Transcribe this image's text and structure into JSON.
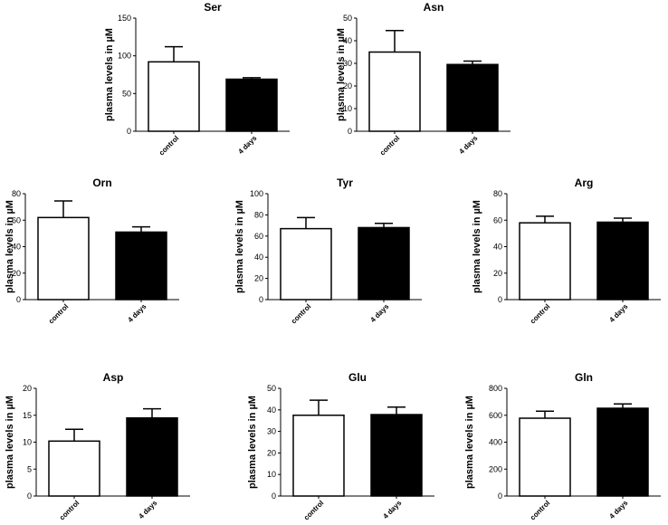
{
  "colors": {
    "control": "#ffffff",
    "treated": "#000000",
    "stroke": "#000000"
  },
  "chart_data": [
    {
      "type": "bar",
      "title": "Ser",
      "ylabel": "plasma levels in  µM",
      "categories": [
        "control",
        "4 days"
      ],
      "values": [
        92,
        69
      ],
      "errors": [
        20,
        2
      ],
      "ylim": [
        0,
        150
      ],
      "yticks": [
        0,
        50,
        100,
        150
      ],
      "grid": false
    },
    {
      "type": "bar",
      "title": "Asn",
      "ylabel": "plasma levels in  µM",
      "categories": [
        "control",
        "4 days"
      ],
      "values": [
        35,
        29.5
      ],
      "errors": [
        9.5,
        1.5
      ],
      "ylim": [
        0,
        50
      ],
      "yticks": [
        0,
        10,
        20,
        30,
        40,
        50
      ],
      "grid": false
    },
    {
      "type": "bar",
      "title": "Orn",
      "ylabel": "plasma levels in  µM",
      "categories": [
        "control",
        "4 days"
      ],
      "values": [
        62,
        51
      ],
      "errors": [
        12.5,
        4
      ],
      "ylim": [
        0,
        80
      ],
      "yticks": [
        0,
        20,
        40,
        60,
        80
      ],
      "grid": false
    },
    {
      "type": "bar",
      "title": "Tyr",
      "ylabel": "plasma levels in  µM",
      "categories": [
        "control",
        "4 days"
      ],
      "values": [
        67,
        68
      ],
      "errors": [
        10.5,
        4
      ],
      "ylim": [
        0,
        100
      ],
      "yticks": [
        0,
        20,
        40,
        60,
        80,
        100
      ],
      "grid": false
    },
    {
      "type": "bar",
      "title": "Arg",
      "ylabel": "plasma levels in  µM",
      "categories": [
        "control",
        "4 days"
      ],
      "values": [
        58,
        58.5
      ],
      "errors": [
        5,
        3
      ],
      "ylim": [
        0,
        80
      ],
      "yticks": [
        0,
        20,
        40,
        60,
        80
      ],
      "grid": false
    },
    {
      "type": "bar",
      "title": "Asp",
      "ylabel": "plasma levels in  µM",
      "categories": [
        "control",
        "4 days"
      ],
      "values": [
        10.2,
        14.5
      ],
      "errors": [
        2.2,
        1.7
      ],
      "ylim": [
        0,
        20
      ],
      "yticks": [
        0,
        5,
        10,
        15,
        20
      ],
      "grid": false
    },
    {
      "type": "bar",
      "title": "Glu",
      "ylabel": "plasma levels in  µM",
      "categories": [
        "control",
        "4 days"
      ],
      "values": [
        37.5,
        37.8
      ],
      "errors": [
        7,
        3.5
      ],
      "ylim": [
        0,
        50
      ],
      "yticks": [
        0,
        10,
        20,
        30,
        40,
        50
      ],
      "grid": false
    },
    {
      "type": "bar",
      "title": "Gln",
      "ylabel": "plasma levels in  µM",
      "categories": [
        "control",
        "4 days"
      ],
      "values": [
        578,
        652
      ],
      "errors": [
        52,
        32
      ],
      "ylim": [
        0,
        800
      ],
      "yticks": [
        0,
        200,
        400,
        600,
        800
      ],
      "grid": false
    }
  ]
}
